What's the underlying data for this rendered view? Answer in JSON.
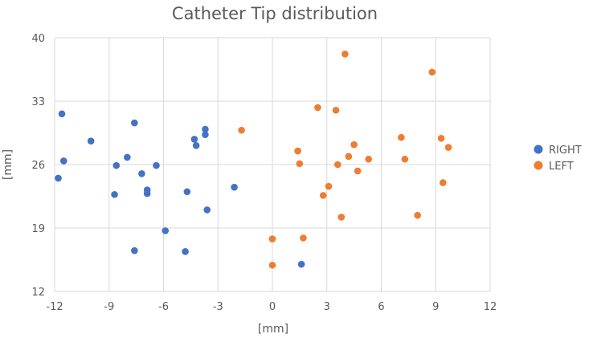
{
  "chart_data": {
    "type": "scatter",
    "title": "Catheter Tip distribution",
    "xlabel": "[mm]",
    "ylabel": "[mm]",
    "xlim": [
      -12,
      12
    ],
    "ylim": [
      12,
      40
    ],
    "xticks": [
      -12,
      -9,
      -6,
      -3,
      0,
      3,
      6,
      9,
      12
    ],
    "yticks": [
      12,
      19,
      26,
      33,
      40
    ],
    "grid": true,
    "legend_position": "right",
    "series": [
      {
        "name": "RIGHT",
        "color": "#4472c4",
        "points": [
          [
            -11.6,
            31.6
          ],
          [
            -11.5,
            26.4
          ],
          [
            -11.8,
            24.5
          ],
          [
            -10.0,
            28.6
          ],
          [
            -8.6,
            25.9
          ],
          [
            -8.7,
            22.7
          ],
          [
            -8.0,
            26.8
          ],
          [
            -7.6,
            30.6
          ],
          [
            -7.2,
            25.0
          ],
          [
            -6.9,
            23.2
          ],
          [
            -6.9,
            22.8
          ],
          [
            -6.4,
            25.9
          ],
          [
            -7.6,
            16.5
          ],
          [
            -5.9,
            18.7
          ],
          [
            -4.8,
            16.4
          ],
          [
            -4.7,
            23.0
          ],
          [
            -4.3,
            28.8
          ],
          [
            -4.2,
            28.1
          ],
          [
            -3.7,
            29.9
          ],
          [
            -3.7,
            29.3
          ],
          [
            -3.6,
            21.0
          ],
          [
            -2.1,
            23.5
          ],
          [
            1.6,
            15.0
          ]
        ]
      },
      {
        "name": "LEFT",
        "color": "#ed7d31",
        "points": [
          [
            -1.7,
            29.8
          ],
          [
            0.0,
            17.8
          ],
          [
            0.0,
            14.9
          ],
          [
            1.4,
            27.5
          ],
          [
            1.5,
            26.1
          ],
          [
            1.7,
            17.9
          ],
          [
            2.5,
            32.3
          ],
          [
            2.8,
            22.6
          ],
          [
            3.1,
            23.6
          ],
          [
            3.5,
            32.0
          ],
          [
            3.6,
            26.0
          ],
          [
            3.8,
            20.2
          ],
          [
            4.0,
            38.2
          ],
          [
            4.2,
            26.9
          ],
          [
            4.5,
            28.2
          ],
          [
            4.7,
            25.3
          ],
          [
            5.3,
            26.6
          ],
          [
            7.1,
            29.0
          ],
          [
            7.3,
            26.6
          ],
          [
            8.8,
            36.2
          ],
          [
            8.0,
            20.4
          ],
          [
            9.3,
            28.9
          ],
          [
            9.4,
            24.0
          ],
          [
            9.7,
            27.9
          ]
        ]
      }
    ]
  }
}
